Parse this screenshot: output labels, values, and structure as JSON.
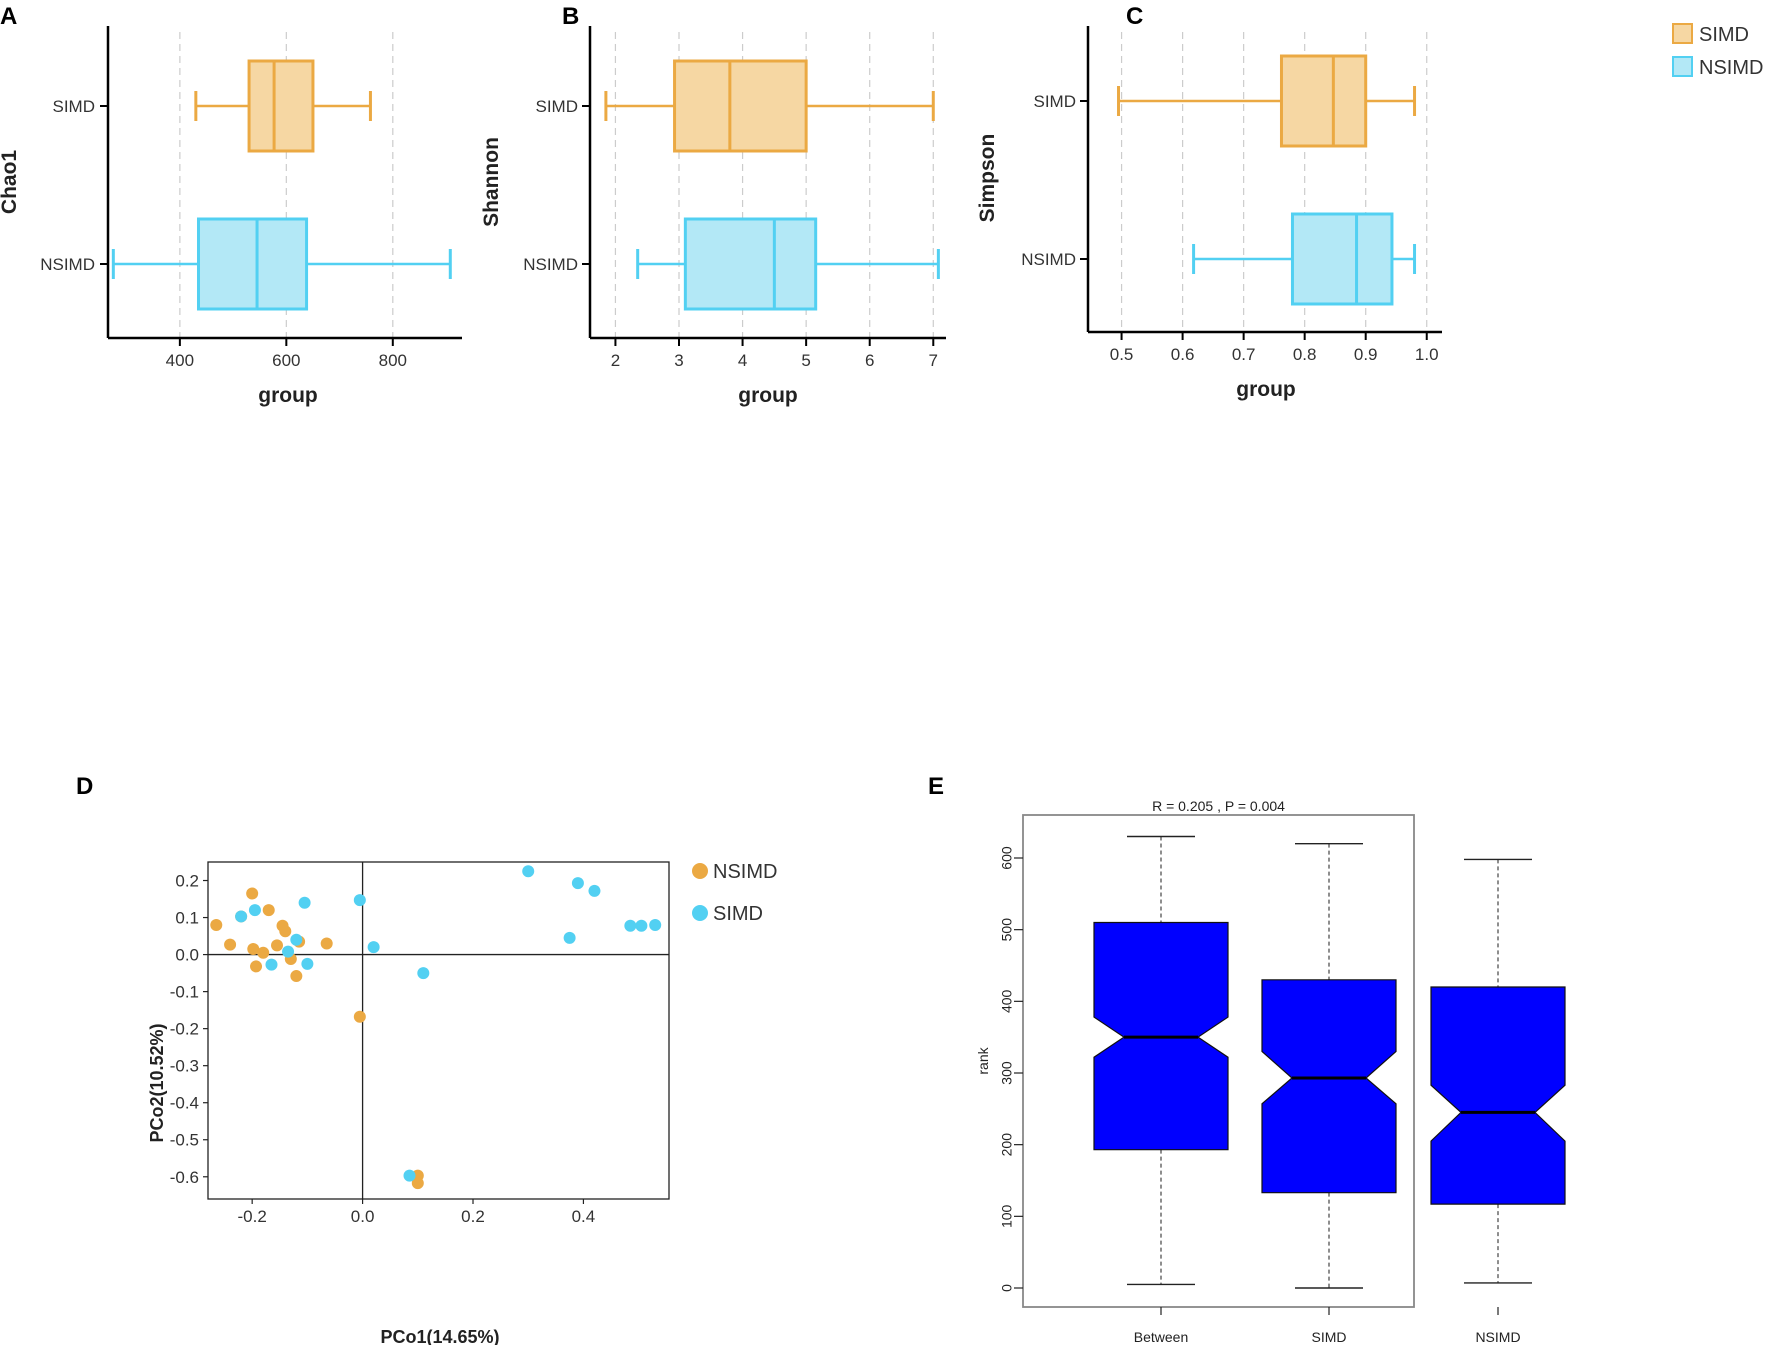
{
  "panel_letters": [
    "A",
    "B",
    "C",
    "D",
    "E"
  ],
  "colors": {
    "simd_fill": "#f6d7a3",
    "simd_stroke": "#eba943",
    "nsimd_fill": "#b3e8f6",
    "nsimd_stroke": "#52d0f2",
    "pcoa_nsimd": "#eba943",
    "pcoa_simd": "#52d0f2",
    "anosim_box": "#0000ff"
  },
  "legend_top": [
    {
      "label": "SIMD",
      "color_key": "simd"
    },
    {
      "label": "NSIMD",
      "color_key": "nsimd"
    }
  ],
  "chart_data": [
    {
      "id": "A",
      "type": "boxplot",
      "orientation": "horizontal",
      "title": "",
      "xlabel": "group",
      "ylabel": "Chao1",
      "xlim": [
        265,
        930
      ],
      "ticks": [
        400,
        600,
        800
      ],
      "groups": [
        {
          "name": "SIMD",
          "min": 430,
          "q1": 530,
          "median": 577,
          "q3": 650,
          "max": 758
        },
        {
          "name": "NSIMD",
          "min": 275,
          "q1": 435,
          "median": 545,
          "q3": 638,
          "max": 908
        }
      ]
    },
    {
      "id": "B",
      "type": "boxplot",
      "orientation": "horizontal",
      "title": "",
      "xlabel": "group",
      "ylabel": "Shannon",
      "xlim": [
        1.6,
        7.2
      ],
      "ticks": [
        2,
        3,
        4,
        5,
        6,
        7
      ],
      "groups": [
        {
          "name": "SIMD",
          "min": 1.85,
          "q1": 2.93,
          "median": 3.8,
          "q3": 5.0,
          "max": 7.0
        },
        {
          "name": "NSIMD",
          "min": 2.35,
          "q1": 3.1,
          "median": 4.5,
          "q3": 5.15,
          "max": 7.08
        }
      ]
    },
    {
      "id": "C",
      "type": "boxplot",
      "orientation": "horizontal",
      "title": "",
      "xlabel": "group",
      "ylabel": "Simpson",
      "xlim": [
        0.445,
        1.025
      ],
      "ticks": [
        "0.5",
        "0.6",
        "0.7",
        "0.8",
        "0.9",
        "1.0"
      ],
      "groups": [
        {
          "name": "SIMD",
          "min": 0.495,
          "q1": 0.762,
          "median": 0.847,
          "q3": 0.9,
          "max": 0.98
        },
        {
          "name": "NSIMD",
          "min": 0.618,
          "q1": 0.78,
          "median": 0.885,
          "q3": 0.943,
          "max": 0.98
        }
      ]
    },
    {
      "id": "D",
      "type": "scatter",
      "title": "",
      "xlabel": "PCo1(14.65%)",
      "ylabel": "PCo2(10.52%)",
      "xlim": [
        -0.28,
        0.555
      ],
      "ylim": [
        -0.66,
        0.25
      ],
      "xticks": [
        "-0.2",
        "0.0",
        "0.2",
        "0.4"
      ],
      "yticks": [
        "0.2",
        "0.1",
        "0.0",
        "-0.1",
        "-0.2",
        "-0.3",
        "-0.4",
        "-0.5",
        "-0.6"
      ],
      "series": [
        {
          "name": "NSIMD",
          "color_key": "pcoa_nsimd",
          "points": [
            [
              -0.265,
              0.08
            ],
            [
              -0.24,
              0.027
            ],
            [
              -0.22,
              0.103
            ],
            [
              -0.2,
              0.165
            ],
            [
              -0.198,
              0.015
            ],
            [
              -0.193,
              -0.032
            ],
            [
              -0.18,
              0.005
            ],
            [
              -0.17,
              0.12
            ],
            [
              -0.155,
              0.025
            ],
            [
              -0.145,
              0.078
            ],
            [
              -0.14,
              0.063
            ],
            [
              -0.13,
              -0.012
            ],
            [
              -0.12,
              -0.058
            ],
            [
              -0.115,
              0.035
            ],
            [
              -0.065,
              0.03
            ],
            [
              -0.005,
              -0.168
            ],
            [
              0.1,
              -0.597
            ],
            [
              0.1,
              -0.617
            ]
          ]
        },
        {
          "name": "SIMD",
          "color_key": "pcoa_simd",
          "points": [
            [
              -0.22,
              0.103
            ],
            [
              -0.195,
              0.12
            ],
            [
              -0.165,
              -0.027
            ],
            [
              -0.135,
              0.008
            ],
            [
              -0.12,
              0.04
            ],
            [
              -0.105,
              0.14
            ],
            [
              -0.1,
              -0.025
            ],
            [
              -0.005,
              0.147
            ],
            [
              0.02,
              0.02
            ],
            [
              0.11,
              -0.05
            ],
            [
              0.085,
              -0.597
            ],
            [
              0.3,
              0.225
            ],
            [
              0.375,
              0.045
            ],
            [
              0.39,
              0.193
            ],
            [
              0.42,
              0.172
            ],
            [
              0.485,
              0.078
            ],
            [
              0.505,
              0.078
            ],
            [
              0.53,
              0.08
            ]
          ]
        }
      ]
    },
    {
      "id": "E",
      "type": "boxplot",
      "orientation": "vertical",
      "notched": true,
      "title": "R = 0.205 , P = 0.004",
      "xlabel": "",
      "ylabel": "rank",
      "ylim": [
        -25,
        655
      ],
      "yticks": [
        0,
        100,
        200,
        300,
        400,
        500,
        600
      ],
      "groups": [
        {
          "name": "Between",
          "min": 5,
          "q1": 193,
          "median": 350,
          "q3": 510,
          "max": 630,
          "notch_low": 322,
          "notch_high": 378
        },
        {
          "name": "SIMD",
          "min": 0,
          "q1": 133,
          "median": 293,
          "q3": 430,
          "max": 620,
          "notch_low": 257,
          "notch_high": 330
        },
        {
          "name": "NSIMD",
          "min": 7,
          "q1": 117,
          "median": 245,
          "q3": 420,
          "max": 598,
          "notch_low": 205,
          "notch_high": 283
        }
      ]
    }
  ]
}
